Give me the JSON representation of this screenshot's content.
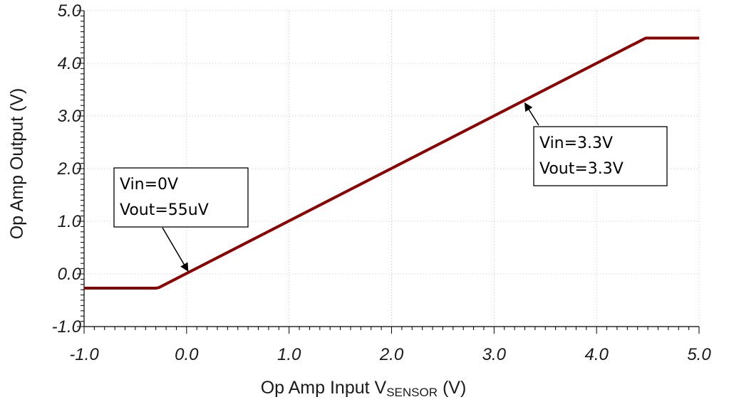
{
  "chart_data": {
    "type": "line",
    "xlabel": {
      "main": "Op Amp Input V",
      "sub": "SENSOR",
      "unit": " (V)"
    },
    "ylabel": "Op Amp Output (V)",
    "xlim": [
      -1.0,
      5.0
    ],
    "ylim": [
      -1.0,
      5.0
    ],
    "x_ticks": [
      "-1.0",
      "0.0",
      "1.0",
      "2.0",
      "3.0",
      "4.0",
      "5.0"
    ],
    "y_ticks": [
      "-1.0",
      "0.0",
      "1.0",
      "2.0",
      "3.0",
      "4.0",
      "5.0"
    ],
    "grid": true,
    "series": [
      {
        "color": "#8b0000",
        "x": [
          -1.0,
          -0.3,
          -0.27,
          4.45,
          4.48,
          5.0
        ],
        "y": [
          -0.27,
          -0.27,
          -0.26,
          4.45,
          4.48,
          4.48
        ]
      }
    ],
    "annotations": [
      {
        "lines": [
          "Vin=0V",
          "Vout=55uV"
        ],
        "point": [
          0.0,
          0.0
        ]
      },
      {
        "lines": [
          "Vin=3.3V",
          "Vout=3.3V"
        ],
        "point": [
          3.3,
          3.3
        ]
      }
    ]
  }
}
